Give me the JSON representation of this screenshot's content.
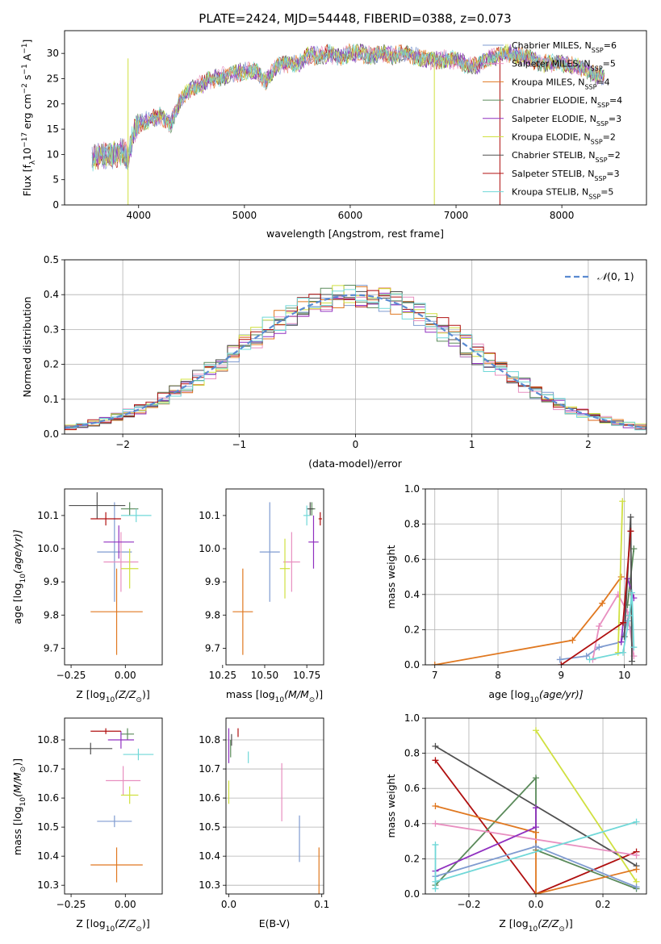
{
  "title": "PLATE=2424, MJD=54448, FIBERID=0388, z=0.073",
  "colors": {
    "Chabrier MILES": "#7f9bd0",
    "Salpeter MILES": "#e88fc0",
    "Kroupa MILES": "#e07820",
    "Chabrier ELODIE": "#5a8a5a",
    "Salpeter ELODIE": "#9030c0",
    "Kroupa ELODIE": "#d0e040",
    "Chabrier STELIB": "#505050",
    "Salpeter STELIB": "#b01010",
    "Kroupa STELIB": "#70d8d8",
    "blue_alt": "#5a80d0"
  },
  "chart_data": [
    {
      "id": "spectrum",
      "type": "line",
      "title": "PLATE=2424, MJD=54448, FIBERID=0388, z=0.073",
      "xlabel": "wavelength [Angstrom, rest frame]",
      "ylabel_main": "Flux [f",
      "ylabel_lambda": "λ",
      "ylabel_rest": "10",
      "ylabel_exp": "−17",
      "ylabel_unit": " erg cm",
      "ylabel_exp2": "−2",
      "ylabel_s": " s",
      "ylabel_exp3": "−1",
      "ylabel_A": " A",
      "ylabel_exp4": "−1",
      "ylabel_close": "]",
      "xlim": [
        3300,
        8800
      ],
      "ylim": [
        0,
        34.5
      ],
      "xticks": [
        "4000",
        "5000",
        "6000",
        "7000",
        "8000"
      ],
      "xtick_values": [
        4000,
        5000,
        6000,
        7000,
        8000
      ],
      "yticks": [
        "0",
        "5",
        "10",
        "15",
        "20",
        "25",
        "30"
      ],
      "ytick_values": [
        0,
        5,
        10,
        15,
        20,
        25,
        30
      ],
      "continuum": [
        [
          3550,
          9
        ],
        [
          3650,
          10
        ],
        [
          3750,
          9.5
        ],
        [
          3850,
          11
        ],
        [
          3900,
          9
        ],
        [
          3950,
          14
        ],
        [
          4000,
          16
        ],
        [
          4100,
          17
        ],
        [
          4200,
          17.5
        ],
        [
          4300,
          16
        ],
        [
          4400,
          21
        ],
        [
          4500,
          23
        ],
        [
          4600,
          24
        ],
        [
          4700,
          25
        ],
        [
          4800,
          25.5
        ],
        [
          4900,
          26
        ],
        [
          5000,
          26.5
        ],
        [
          5100,
          26.5
        ],
        [
          5200,
          24.5
        ],
        [
          5300,
          27.5
        ],
        [
          5400,
          28
        ],
        [
          5500,
          28
        ],
        [
          5600,
          29.5
        ],
        [
          5700,
          29.5
        ],
        [
          5800,
          30
        ],
        [
          5900,
          29
        ],
        [
          6000,
          30
        ],
        [
          6100,
          30
        ],
        [
          6200,
          29.5
        ],
        [
          6300,
          30
        ],
        [
          6400,
          29.5
        ],
        [
          6500,
          30
        ],
        [
          6600,
          29.5
        ],
        [
          6700,
          29
        ],
        [
          6800,
          28.5
        ],
        [
          6900,
          29
        ],
        [
          7000,
          28.5
        ],
        [
          7100,
          28
        ],
        [
          7200,
          27.5
        ],
        [
          7300,
          29
        ],
        [
          7400,
          29.5
        ],
        [
          7500,
          30
        ],
        [
          7600,
          29.5
        ],
        [
          7700,
          29
        ],
        [
          7800,
          28
        ],
        [
          7900,
          28
        ],
        [
          8000,
          28
        ],
        [
          8100,
          27.5
        ],
        [
          8200,
          27
        ],
        [
          8300,
          26
        ],
        [
          8400,
          25
        ]
      ],
      "legend": [
        {
          "name": "Chabrier MILES",
          "nlabel": "N",
          "sub": "SSP",
          "n": "=6"
        },
        {
          "name": "Salpeter MILES",
          "nlabel": "N",
          "sub": "SSP",
          "n": "=5"
        },
        {
          "name": "Kroupa MILES",
          "nlabel": "N",
          "sub": "SSP",
          "n": "=4"
        },
        {
          "name": "Chabrier ELODIE",
          "nlabel": "N",
          "sub": "SSP",
          "n": "=4"
        },
        {
          "name": "Salpeter ELODIE",
          "nlabel": "N",
          "sub": "SSP",
          "n": "=3"
        },
        {
          "name": "Kroupa ELODIE",
          "nlabel": "N",
          "sub": "SSP",
          "n": "=2"
        },
        {
          "name": "Chabrier STELIB",
          "nlabel": "N",
          "sub": "SSP",
          "n": "=2"
        },
        {
          "name": "Salpeter STELIB",
          "nlabel": "N",
          "sub": "SSP",
          "n": "=3"
        },
        {
          "name": "Kroupa STELIB",
          "nlabel": "N",
          "sub": "SSP",
          "n": "=5"
        }
      ]
    },
    {
      "id": "residuals",
      "type": "area",
      "xlabel": "(data-model)/error",
      "ylabel": "Normed distribution",
      "xlim": [
        -2.5,
        2.5
      ],
      "ylim": [
        0,
        0.5
      ],
      "grid": true,
      "xticks": [
        "−2",
        "−1",
        "0",
        "1",
        "2"
      ],
      "xtick_values": [
        -2,
        -1,
        0,
        1,
        2
      ],
      "yticks": [
        "0.0",
        "0.1",
        "0.2",
        "0.3",
        "0.4",
        "0.5"
      ],
      "ytick_values": [
        0,
        0.1,
        0.2,
        0.3,
        0.4,
        0.5
      ],
      "legend_prefix": "𝒩",
      "legend_label": "(0, 1)",
      "bin_width": 0.1,
      "gaussian": {
        "mu": 0,
        "sigma": 1
      }
    },
    {
      "id": "age-vs-Z",
      "type": "scatter",
      "xlabel": "Z [log",
      "xlabel_sub": "10",
      "xlabel_rest": "(Z/Z",
      "xlabel_sun": "⊙",
      "xlabel_close": ")]",
      "ylabel": "age  [log",
      "ylabel_sub": "10",
      "ylabel_rest": "(age/yr)]",
      "xlim": [
        -0.28,
        0.17
      ],
      "ylim": [
        9.65,
        10.18
      ],
      "xticks": [
        "−0.25",
        "0.00"
      ],
      "xtick_values": [
        -0.25,
        0.0
      ],
      "yticks": [
        "9.7",
        "9.8",
        "9.9",
        "10.0",
        "10.1"
      ],
      "ytick_values": [
        9.7,
        9.8,
        9.9,
        10.0,
        10.1
      ],
      "points": [
        {
          "series": "Chabrier MILES",
          "x": -0.05,
          "y": 9.99,
          "xerr": 0.08,
          "yerr": 0.15
        },
        {
          "series": "Salpeter MILES",
          "x": -0.02,
          "y": 9.96,
          "xerr": 0.08,
          "yerr": 0.09
        },
        {
          "series": "Kroupa MILES",
          "x": -0.04,
          "y": 9.81,
          "xerr": 0.12,
          "yerr": 0.13
        },
        {
          "series": "Chabrier ELODIE",
          "x": 0.02,
          "y": 10.12,
          "xerr": 0.04,
          "yerr": 0.02
        },
        {
          "series": "Salpeter ELODIE",
          "x": -0.03,
          "y": 10.02,
          "xerr": 0.07,
          "yerr": 0.05
        },
        {
          "series": "Kroupa ELODIE",
          "x": 0.02,
          "y": 9.94,
          "xerr": 0.04,
          "yerr": 0.06
        },
        {
          "series": "Chabrier STELIB",
          "x": -0.13,
          "y": 10.13,
          "xerr": 0.13,
          "yerr": 0.04
        },
        {
          "series": "Salpeter STELIB",
          "x": -0.09,
          "y": 10.09,
          "xerr": 0.07,
          "yerr": 0.02
        },
        {
          "series": "Kroupa STELIB",
          "x": 0.05,
          "y": 10.1,
          "xerr": 0.07,
          "yerr": 0.02
        }
      ]
    },
    {
      "id": "age-vs-mass",
      "type": "scatter",
      "xlabel": "mass [log",
      "xlabel_sub": "10",
      "xlabel_rest": "(M/M",
      "xlabel_sun": "⊙",
      "xlabel_close": ")]",
      "xlim": [
        10.27,
        10.85
      ],
      "ylim": [
        9.65,
        10.18
      ],
      "xticks": [
        "10.25",
        "10.50",
        "10.75"
      ],
      "xtick_values": [
        10.25,
        10.5,
        10.75
      ],
      "yticks": [
        "9.7",
        "9.8",
        "9.9",
        "10.0",
        "10.1"
      ],
      "ytick_values": [
        9.7,
        9.8,
        9.9,
        10.0,
        10.1
      ],
      "points": [
        {
          "series": "Chabrier MILES",
          "x": 10.53,
          "y": 9.99,
          "xerr": 0.06,
          "yerr": 0.15
        },
        {
          "series": "Salpeter MILES",
          "x": 10.66,
          "y": 9.96,
          "xerr": 0.05,
          "yerr": 0.09
        },
        {
          "series": "Kroupa MILES",
          "x": 10.37,
          "y": 9.81,
          "xerr": 0.06,
          "yerr": 0.13
        },
        {
          "series": "Chabrier ELODIE",
          "x": 10.78,
          "y": 10.12,
          "xerr": 0.02,
          "yerr": 0.02
        },
        {
          "series": "Salpeter ELODIE",
          "x": 10.79,
          "y": 10.02,
          "xerr": 0.03,
          "yerr": 0.08
        },
        {
          "series": "Kroupa ELODIE",
          "x": 10.62,
          "y": 9.94,
          "xerr": 0.03,
          "yerr": 0.09
        },
        {
          "series": "Chabrier STELIB",
          "x": 10.77,
          "y": 10.12,
          "xerr": 0.02,
          "yerr": 0.02
        },
        {
          "series": "Salpeter STELIB",
          "x": 10.83,
          "y": 10.09,
          "xerr": 0.01,
          "yerr": 0.02
        },
        {
          "series": "Kroupa STELIB",
          "x": 10.75,
          "y": 10.1,
          "xerr": 0.02,
          "yerr": 0.03
        }
      ]
    },
    {
      "id": "weight-vs-age",
      "type": "line",
      "xlabel": "age  [log",
      "xlabel_sub": "10",
      "xlabel_rest": "(age/yr)]",
      "ylabel": "mass weight",
      "xlim": [
        6.85,
        10.35
      ],
      "ylim": [
        0,
        1
      ],
      "grid": true,
      "xticks": [
        "7",
        "8",
        "9",
        "10"
      ],
      "xtick_values": [
        7,
        8,
        9,
        10
      ],
      "yticks": [
        "0.0",
        "0.2",
        "0.4",
        "0.6",
        "0.8",
        "1.0"
      ],
      "ytick_values": [
        0,
        0.2,
        0.4,
        0.6,
        0.8,
        1.0
      ],
      "series": [
        {
          "name": "Kroupa MILES",
          "x": [
            7.0,
            9.18,
            9.65,
            9.95
          ],
          "y": [
            0.0,
            0.14,
            0.35,
            0.5
          ]
        },
        {
          "name": "Chabrier MILES",
          "x": [
            8.98,
            9.4,
            9.6,
            9.95,
            10.05,
            10.1
          ],
          "y": [
            0.03,
            0.05,
            0.1,
            0.13,
            0.25,
            0.2
          ]
        },
        {
          "name": "Salpeter MILES",
          "x": [
            9.5,
            9.6,
            9.9,
            10.05,
            10.15
          ],
          "y": [
            0.03,
            0.22,
            0.4,
            0.3,
            0.05
          ]
        },
        {
          "name": "Kroupa ELODIE",
          "x": [
            9.9,
            9.97
          ],
          "y": [
            0.07,
            0.93
          ]
        },
        {
          "name": "Chabrier ELODIE",
          "x": [
            10.05,
            10.15
          ],
          "y": [
            0.34,
            0.66
          ]
        },
        {
          "name": "Salpeter ELODIE",
          "x": [
            9.95,
            10.05,
            10.15
          ],
          "y": [
            0.13,
            0.49,
            0.38
          ]
        },
        {
          "name": "Chabrier STELIB",
          "x": [
            10.0,
            10.1,
            10.12
          ],
          "y": [
            0.16,
            0.84,
            0.02
          ]
        },
        {
          "name": "Salpeter STELIB",
          "x": [
            9.0,
            9.98,
            10.1
          ],
          "y": [
            0.0,
            0.24,
            0.76
          ]
        },
        {
          "name": "Kroupa STELIB",
          "x": [
            9.45,
            9.98,
            10.08,
            10.12,
            10.15
          ],
          "y": [
            0.03,
            0.07,
            0.28,
            0.41,
            0.1
          ]
        }
      ]
    },
    {
      "id": "mass-vs-Z",
      "type": "scatter",
      "xlabel": "Z [log",
      "xlabel_sub": "10",
      "xlabel_rest": "(Z/Z",
      "xlabel_sun": "⊙",
      "xlabel_close": ")]",
      "ylabel": "mass [log",
      "ylabel_sub": "10",
      "ylabel_rest": "(M/M",
      "ylabel_sun": "⊙",
      "ylabel_close": ")]",
      "xlim": [
        -0.28,
        0.17
      ],
      "ylim": [
        10.27,
        10.875
      ],
      "xticks": [
        "−0.25",
        "0.00"
      ],
      "xtick_values": [
        -0.25,
        0.0
      ],
      "yticks": [
        "10.3",
        "10.4",
        "10.5",
        "10.6",
        "10.7",
        "10.8"
      ],
      "ytick_values": [
        10.3,
        10.4,
        10.5,
        10.6,
        10.7,
        10.8
      ],
      "points": [
        {
          "series": "Chabrier MILES",
          "x": -0.05,
          "y": 10.52,
          "xerr": 0.08,
          "yerr": 0.02
        },
        {
          "series": "Salpeter MILES",
          "x": -0.01,
          "y": 10.66,
          "xerr": 0.08,
          "yerr": 0.05
        },
        {
          "series": "Kroupa MILES",
          "x": -0.04,
          "y": 10.37,
          "xerr": 0.12,
          "yerr": 0.06
        },
        {
          "series": "Chabrier ELODIE",
          "x": 0.01,
          "y": 10.82,
          "xerr": 0.03,
          "yerr": 0.02
        },
        {
          "series": "Salpeter ELODIE",
          "x": -0.02,
          "y": 10.8,
          "xerr": 0.06,
          "yerr": 0.03
        },
        {
          "series": "Kroupa ELODIE",
          "x": 0.02,
          "y": 10.61,
          "xerr": 0.04,
          "yerr": 0.03
        },
        {
          "series": "Chabrier STELIB",
          "x": -0.16,
          "y": 10.77,
          "xerr": 0.1,
          "yerr": 0.02
        },
        {
          "series": "Salpeter STELIB",
          "x": -0.09,
          "y": 10.83,
          "xerr": 0.07,
          "yerr": 0.01
        },
        {
          "series": "Kroupa STELIB",
          "x": 0.06,
          "y": 10.75,
          "xerr": 0.07,
          "yerr": 0.02
        }
      ]
    },
    {
      "id": "mass-vs-ebv",
      "type": "scatter",
      "xlabel": "E(B-V)",
      "xlim": [
        -0.003,
        0.102
      ],
      "ylim": [
        10.27,
        10.875
      ],
      "xticks": [
        "0.0",
        "0.1"
      ],
      "xtick_values": [
        0.0,
        0.1
      ],
      "yticks": [
        "10.3",
        "10.4",
        "10.5",
        "10.6",
        "10.7",
        "10.8"
      ],
      "ytick_values": [
        10.3,
        10.4,
        10.5,
        10.6,
        10.7,
        10.8
      ],
      "points": [
        {
          "series": "Chabrier MILES",
          "x": 0.076,
          "y": 10.46,
          "xerr": 0,
          "yerr": 0.08
        },
        {
          "series": "Salpeter MILES",
          "x": 0.057,
          "y": 10.62,
          "xerr": 0,
          "yerr": 0.1
        },
        {
          "series": "Kroupa MILES",
          "x": 0.097,
          "y": 10.33,
          "xerr": 0,
          "yerr": 0.1
        },
        {
          "series": "Chabrier ELODIE",
          "x": 0.002,
          "y": 10.77,
          "xerr": 0,
          "yerr": 0.03
        },
        {
          "series": "Salpeter ELODIE",
          "x": 0.0,
          "y": 10.78,
          "xerr": 0,
          "yerr": 0.06
        },
        {
          "series": "Kroupa ELODIE",
          "x": 0.0,
          "y": 10.62,
          "xerr": 0,
          "yerr": 0.04
        },
        {
          "series": "Chabrier STELIB",
          "x": 0.003,
          "y": 10.8,
          "xerr": 0,
          "yerr": 0.02
        },
        {
          "series": "Salpeter STELIB",
          "x": 0.01,
          "y": 10.825,
          "xerr": 0,
          "yerr": 0.015
        },
        {
          "series": "Kroupa STELIB",
          "x": 0.021,
          "y": 10.74,
          "xerr": 0,
          "yerr": 0.02
        }
      ]
    },
    {
      "id": "weight-vs-Z",
      "type": "line",
      "xlabel": "Z [log",
      "xlabel_sub": "10",
      "xlabel_rest": "(Z/Z",
      "xlabel_sun": "⊙",
      "xlabel_close": ")]",
      "ylabel": "mass weight",
      "xlim": [
        -0.33,
        0.33
      ],
      "ylim": [
        0,
        1
      ],
      "grid": true,
      "xticks": [
        "−0.2",
        "0.0",
        "0.2"
      ],
      "xtick_values": [
        -0.2,
        0.0,
        0.2
      ],
      "yticks": [
        "0.0",
        "0.2",
        "0.4",
        "0.6",
        "0.8",
        "1.0"
      ],
      "ytick_values": [
        0,
        0.2,
        0.4,
        0.6,
        0.8,
        1.0
      ],
      "series": [
        {
          "name": "Chabrier STELIB",
          "x": [
            -0.3,
            0.3
          ],
          "y": [
            0.84,
            0.16
          ]
        },
        {
          "name": "Salpeter STELIB",
          "x": [
            -0.3,
            0.0,
            0.3
          ],
          "y": [
            0.76,
            0.0,
            0.24
          ]
        },
        {
          "name": "Kroupa ELODIE",
          "x": [
            0.0,
            0.3
          ],
          "y": [
            0.93,
            0.07
          ]
        },
        {
          "name": "Chabrier ELODIE",
          "x": [
            -0.3,
            0.0,
            0.0,
            0.3
          ],
          "y": [
            0.05,
            0.66,
            0.25,
            0.03
          ]
        },
        {
          "name": "Kroupa MILES",
          "x": [
            -0.3,
            0.0,
            0.0,
            0.3
          ],
          "y": [
            0.5,
            0.35,
            0.0,
            0.14
          ]
        },
        {
          "name": "Salpeter MILES",
          "x": [
            -0.3,
            0.3
          ],
          "y": [
            0.4,
            0.22
          ]
        },
        {
          "name": "Salpeter ELODIE",
          "x": [
            -0.3,
            0.0,
            0.0
          ],
          "y": [
            0.13,
            0.38,
            0.49
          ]
        },
        {
          "name": "Chabrier MILES",
          "x": [
            -0.3,
            0.0,
            0.3
          ],
          "y": [
            0.1,
            0.27,
            0.04
          ]
        },
        {
          "name": "Kroupa STELIB",
          "x": [
            -0.3,
            0.3
          ],
          "y": [
            0.07,
            0.41
          ]
        },
        {
          "name": "Kroupa STELIB",
          "x": [
            -0.3,
            -0.3
          ],
          "y": [
            0.03,
            0.28
          ]
        }
      ]
    }
  ]
}
